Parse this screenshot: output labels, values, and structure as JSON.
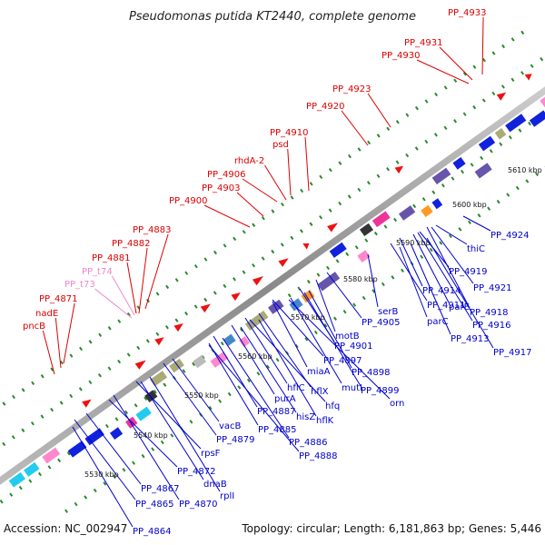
{
  "title": "Pseudomonas putida KT2440, complete genome",
  "footer": {
    "accession": "Accession: NC_002947",
    "summary": "Topology: circular; Length: 6,181,863 bp; Genes: 5,446"
  },
  "colors": {
    "top_label": "#dd0000",
    "top_label_trna": "#ee88cc",
    "bottom_label": "#0000cc",
    "track": "#888888",
    "forward_gene": "#ee1111",
    "reverse_gene": "#1111dd",
    "dots": "#2a8a2a"
  },
  "ticks": [
    "5530 kbp",
    "5540 kbp",
    "5550 kbp",
    "5560 kbp",
    "5570 kbp",
    "5580 kbp",
    "5590 kbp",
    "5600 kbp",
    "5610 kbp"
  ],
  "top_labels": [
    {
      "text": "PP_4933",
      "type": "gene"
    },
    {
      "text": "PP_4931",
      "type": "gene"
    },
    {
      "text": "PP_4930",
      "type": "gene"
    },
    {
      "text": "PP_4923",
      "type": "gene"
    },
    {
      "text": "PP_4920",
      "type": "gene"
    },
    {
      "text": "PP_4910",
      "type": "gene"
    },
    {
      "text": "psd",
      "type": "gene"
    },
    {
      "text": "rhdA-2",
      "type": "gene"
    },
    {
      "text": "PP_4906",
      "type": "gene"
    },
    {
      "text": "PP_4903",
      "type": "gene"
    },
    {
      "text": "PP_4900",
      "type": "gene"
    },
    {
      "text": "PP_4883",
      "type": "gene"
    },
    {
      "text": "PP_4882",
      "type": "gene"
    },
    {
      "text": "PP_4881",
      "type": "gene"
    },
    {
      "text": "PP_t74",
      "type": "trna"
    },
    {
      "text": "PP_t73",
      "type": "trna"
    },
    {
      "text": "PP_4871",
      "type": "gene"
    },
    {
      "text": "nadE",
      "type": "gene"
    },
    {
      "text": "pncB",
      "type": "gene"
    }
  ],
  "bottom_labels": [
    "PP_4924",
    "thiC",
    "PP_4919",
    "PP_4921",
    "PP_4914",
    "PP_4918",
    "PP_4911",
    "parE",
    "PP_4916",
    "serB",
    "parC",
    "PP_4913",
    "PP_4917",
    "PP_4905",
    "motB",
    "PP_4901",
    "PP_4897",
    "PP_4898",
    "miaA",
    "mutL",
    "PP_4899",
    "hflC",
    "hflX",
    "orn",
    "purA",
    "hfq",
    "PP_4887",
    "hisZ",
    "hflK",
    "vacB",
    "PP_4885",
    "PP_4879",
    "PP_4886",
    "rpsF",
    "PP_4888",
    "PP_4872",
    "dnaB",
    "PP_4867",
    "rplI",
    "PP_4870",
    "PP_4865",
    "PP_4864"
  ]
}
